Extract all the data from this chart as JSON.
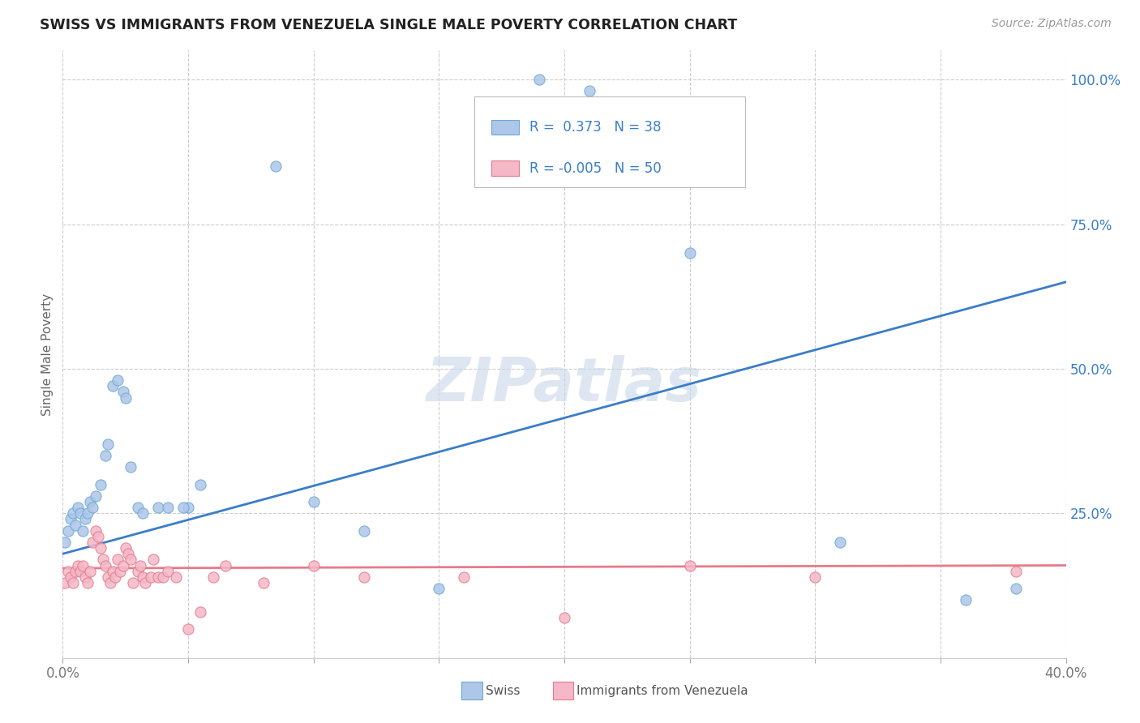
{
  "title": "SWISS VS IMMIGRANTS FROM VENEZUELA SINGLE MALE POVERTY CORRELATION CHART",
  "source": "Source: ZipAtlas.com",
  "ylabel": "Single Male Poverty",
  "swiss_color": "#aec6e8",
  "swiss_edge": "#6aaad5",
  "venezuela_color": "#f4b8c8",
  "venezuela_edge": "#e87a8a",
  "blue_line_color": "#3a7dc9",
  "pink_line_color": "#e87a8a",
  "watermark_color": "#c8d8e8",
  "ytick_color": "#3a7dc9",
  "xtick_color": "#777777",
  "grid_color": "#cccccc",
  "title_color": "#222222",
  "source_color": "#999999",
  "legend_text_color": "#3a7dc9",
  "legend_label_color": "#555555",
  "background_color": "#ffffff",
  "xlim": [
    0.0,
    0.4
  ],
  "ylim": [
    0.0,
    1.05
  ],
  "blue_line_x0": 0.0,
  "blue_line_y0": 0.18,
  "blue_line_x1": 0.4,
  "blue_line_y1": 0.65,
  "pink_line_x0": 0.0,
  "pink_line_y0": 0.155,
  "pink_line_x1": 0.4,
  "pink_line_y1": 0.16,
  "swiss_x": [
    0.001,
    0.002,
    0.003,
    0.004,
    0.005,
    0.006,
    0.007,
    0.008,
    0.009,
    0.01,
    0.011,
    0.012,
    0.013,
    0.015,
    0.017,
    0.018,
    0.02,
    0.022,
    0.024,
    0.025,
    0.027,
    0.03,
    0.032,
    0.038,
    0.042,
    0.05,
    0.055,
    0.12,
    0.19,
    0.21,
    0.25,
    0.31,
    0.36,
    0.38,
    0.048,
    0.1,
    0.15,
    0.085
  ],
  "swiss_y": [
    0.2,
    0.22,
    0.24,
    0.25,
    0.23,
    0.26,
    0.25,
    0.22,
    0.24,
    0.25,
    0.27,
    0.26,
    0.28,
    0.3,
    0.35,
    0.37,
    0.47,
    0.48,
    0.46,
    0.45,
    0.33,
    0.26,
    0.25,
    0.26,
    0.26,
    0.26,
    0.3,
    0.22,
    1.0,
    0.98,
    0.7,
    0.2,
    0.1,
    0.12,
    0.26,
    0.27,
    0.12,
    0.85
  ],
  "ven_x": [
    0.001,
    0.002,
    0.003,
    0.004,
    0.005,
    0.006,
    0.007,
    0.008,
    0.009,
    0.01,
    0.011,
    0.012,
    0.013,
    0.014,
    0.015,
    0.016,
    0.017,
    0.018,
    0.019,
    0.02,
    0.021,
    0.022,
    0.023,
    0.024,
    0.025,
    0.026,
    0.027,
    0.028,
    0.03,
    0.031,
    0.032,
    0.033,
    0.035,
    0.036,
    0.038,
    0.04,
    0.042,
    0.045,
    0.05,
    0.055,
    0.06,
    0.065,
    0.08,
    0.1,
    0.12,
    0.16,
    0.2,
    0.25,
    0.3,
    0.38
  ],
  "ven_y": [
    0.13,
    0.15,
    0.14,
    0.13,
    0.15,
    0.16,
    0.15,
    0.16,
    0.14,
    0.13,
    0.15,
    0.2,
    0.22,
    0.21,
    0.19,
    0.17,
    0.16,
    0.14,
    0.13,
    0.15,
    0.14,
    0.17,
    0.15,
    0.16,
    0.19,
    0.18,
    0.17,
    0.13,
    0.15,
    0.16,
    0.14,
    0.13,
    0.14,
    0.17,
    0.14,
    0.14,
    0.15,
    0.14,
    0.05,
    0.08,
    0.14,
    0.16,
    0.13,
    0.16,
    0.14,
    0.14,
    0.07,
    0.16,
    0.14,
    0.15
  ]
}
